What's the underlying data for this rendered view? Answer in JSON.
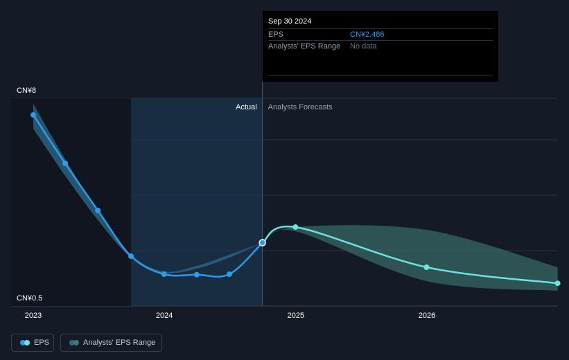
{
  "tooltip": {
    "date": "Sep 30 2024",
    "eps_label": "EPS",
    "eps_value": "CN¥2.486",
    "range_label": "Analysts' EPS Range",
    "range_value": "No data"
  },
  "labels": {
    "actual": "Actual",
    "forecast": "Analysts Forecasts"
  },
  "legend": {
    "eps": "EPS",
    "range": "Analysts' EPS Range"
  },
  "colors": {
    "background": "#151b26",
    "eps_actual": "#2d9be8",
    "eps_forecast": "#6ae4dc",
    "range_actual": "#2f6a8a",
    "range_forecast": "#3e7a73",
    "highlight": "#1b3a5a"
  },
  "chart_data": {
    "type": "line",
    "y_tick_labels": [
      "CN¥8",
      "CN¥0.5"
    ],
    "ylim": [
      0.5,
      8
    ],
    "x_tick_labels": [
      "2023",
      "2024",
      "2025",
      "2026"
    ],
    "xlim": [
      "2023-01-01",
      "2027-02-15"
    ],
    "grid": true,
    "legend_position": "bottom-left",
    "highlight_range": [
      "2023-09-30",
      "2024-09-30"
    ],
    "series": [
      {
        "name": "EPS",
        "segment": "actual",
        "x": [
          "2023-01-01",
          "2023-03-31",
          "2023-06-30",
          "2023-09-30",
          "2023-12-31",
          "2024-03-31",
          "2024-06-30",
          "2024-09-30"
        ],
        "y": [
          7.1,
          5.35,
          3.65,
          2.0,
          1.35,
          1.33,
          1.35,
          2.486
        ]
      },
      {
        "name": "EPS",
        "segment": "forecast",
        "x": [
          "2024-09-30",
          "2024-12-31",
          "2025-12-31",
          "2026-12-31"
        ],
        "y": [
          2.486,
          3.05,
          1.6,
          1.02
        ]
      },
      {
        "name": "Analysts' EPS Range",
        "segment": "actual",
        "x": [
          "2023-01-01",
          "2023-03-31",
          "2023-06-30",
          "2023-09-30",
          "2023-12-31",
          "2024-03-31",
          "2024-06-30",
          "2024-09-30"
        ],
        "low": [
          6.6,
          4.9,
          3.3,
          1.95,
          1.4,
          1.55,
          1.95,
          2.486
        ],
        "high": [
          7.5,
          5.5,
          3.6,
          2.05,
          1.45,
          1.65,
          2.05,
          2.486
        ]
      },
      {
        "name": "Analysts' EPS Range",
        "segment": "forecast",
        "x": [
          "2024-09-30",
          "2024-12-31",
          "2025-12-31",
          "2026-12-31"
        ],
        "low": [
          2.486,
          2.9,
          1.1,
          0.75
        ],
        "high": [
          2.486,
          3.05,
          2.95,
          1.6
        ]
      }
    ]
  }
}
